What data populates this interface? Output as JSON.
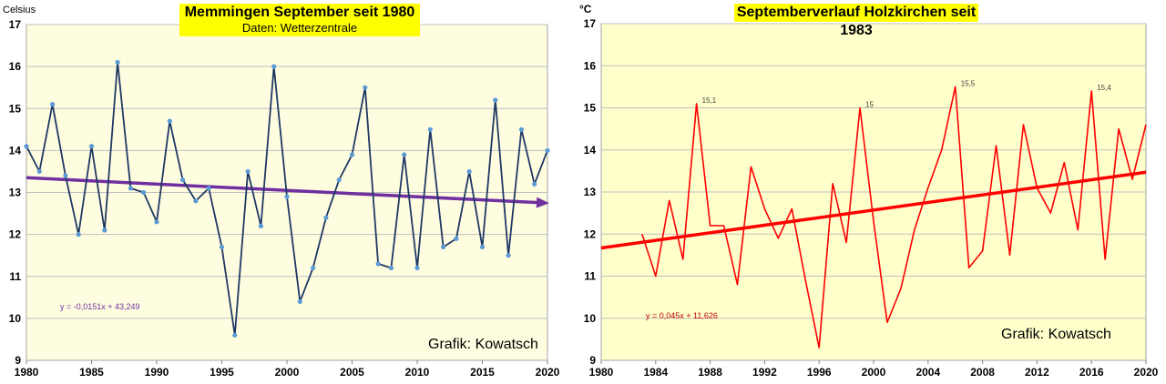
{
  "chart_data": [
    {
      "type": "line",
      "title": "Memmingen September seit 1980",
      "subtitle": "Daten: Wetterzentrale",
      "ylabel": "Celsius",
      "xlim": [
        1980,
        2020
      ],
      "ylim": [
        9,
        17
      ],
      "x_ticks": [
        1980,
        1985,
        1990,
        1995,
        2000,
        2005,
        2010,
        2015,
        2020
      ],
      "y_ticks": [
        9,
        10,
        11,
        12,
        13,
        14,
        15,
        16,
        17
      ],
      "grid": true,
      "colors": {
        "plot_background": "#fffde0",
        "line": "#1f3864",
        "marker": "#5b9bd5",
        "trend": "#7030a0",
        "title_background": "#ffff00"
      },
      "series": [
        {
          "x": [
            1980,
            1981,
            1982,
            1983,
            1984,
            1985,
            1986,
            1987,
            1988,
            1989,
            1990,
            1991,
            1992,
            1993,
            1994,
            1995,
            1996,
            1997,
            1998,
            1999,
            2000,
            2001,
            2002,
            2003,
            2004,
            2005,
            2006,
            2007,
            2008,
            2009,
            2010,
            2011,
            2012,
            2013,
            2014,
            2015,
            2016,
            2017,
            2018,
            2019,
            2020
          ],
          "values": [
            14.1,
            13.5,
            15.1,
            13.4,
            12.0,
            14.1,
            12.1,
            16.1,
            13.1,
            13.0,
            12.3,
            14.7,
            13.3,
            12.8,
            13.1,
            11.7,
            9.6,
            13.5,
            12.2,
            16.0,
            12.9,
            10.4,
            11.2,
            12.4,
            13.3,
            13.9,
            15.5,
            11.3,
            11.2,
            13.9,
            11.2,
            14.5,
            11.7,
            11.9,
            13.5,
            11.7,
            15.2,
            11.5,
            14.5,
            13.2,
            14.0
          ]
        }
      ],
      "trendline": {
        "equation": "y = -0,0151x + 43,249",
        "slope": -0.0151,
        "intercept": 43.249
      },
      "annotations": [
        "Grafik: Kowatsch"
      ]
    },
    {
      "type": "line",
      "title": "Septemberverlauf Holzkirchen seit 1983",
      "ylabel": "°C",
      "xlim": [
        1980,
        2020
      ],
      "ylim": [
        9,
        17
      ],
      "x_ticks": [
        1980,
        1984,
        1988,
        1992,
        1996,
        2000,
        2004,
        2008,
        2012,
        2016,
        2020
      ],
      "y_ticks": [
        9,
        10,
        11,
        12,
        13,
        14,
        15,
        16,
        17
      ],
      "grid": true,
      "colors": {
        "plot_background": "#ffffcc",
        "line": "#ff0000",
        "trend": "#ff0000",
        "title_background": "#ffff00"
      },
      "series": [
        {
          "x": [
            1983,
            1984,
            1985,
            1986,
            1987,
            1988,
            1989,
            1990,
            1991,
            1992,
            1993,
            1994,
            1995,
            1996,
            1997,
            1998,
            1999,
            2000,
            2001,
            2002,
            2003,
            2004,
            2005,
            2006,
            2007,
            2008,
            2009,
            2010,
            2011,
            2012,
            2013,
            2014,
            2015,
            2016,
            2017,
            2018,
            2019,
            2020
          ],
          "values": [
            12.0,
            11.0,
            12.8,
            11.4,
            15.1,
            12.2,
            12.2,
            10.8,
            13.6,
            12.6,
            11.9,
            12.6,
            10.9,
            9.3,
            13.2,
            11.8,
            15.0,
            12.3,
            9.9,
            10.7,
            12.1,
            13.1,
            14.0,
            15.5,
            11.2,
            11.6,
            14.1,
            11.5,
            14.6,
            13.1,
            12.5,
            13.7,
            12.1,
            15.4,
            11.4,
            14.5,
            13.3,
            14.6
          ]
        }
      ],
      "data_labels": [
        {
          "x": 1987,
          "y": 15.1,
          "text": "15,1"
        },
        {
          "x": 1999,
          "y": 15.0,
          "text": "15"
        },
        {
          "x": 2006,
          "y": 15.5,
          "text": "15,5"
        },
        {
          "x": 2016,
          "y": 15.4,
          "text": "15,4"
        }
      ],
      "trendline": {
        "equation": "y = 0,045x + 11,626",
        "slope": 0.045,
        "intercept": 11.626
      },
      "annotations": [
        "Grafik: Kowatsch"
      ]
    }
  ]
}
